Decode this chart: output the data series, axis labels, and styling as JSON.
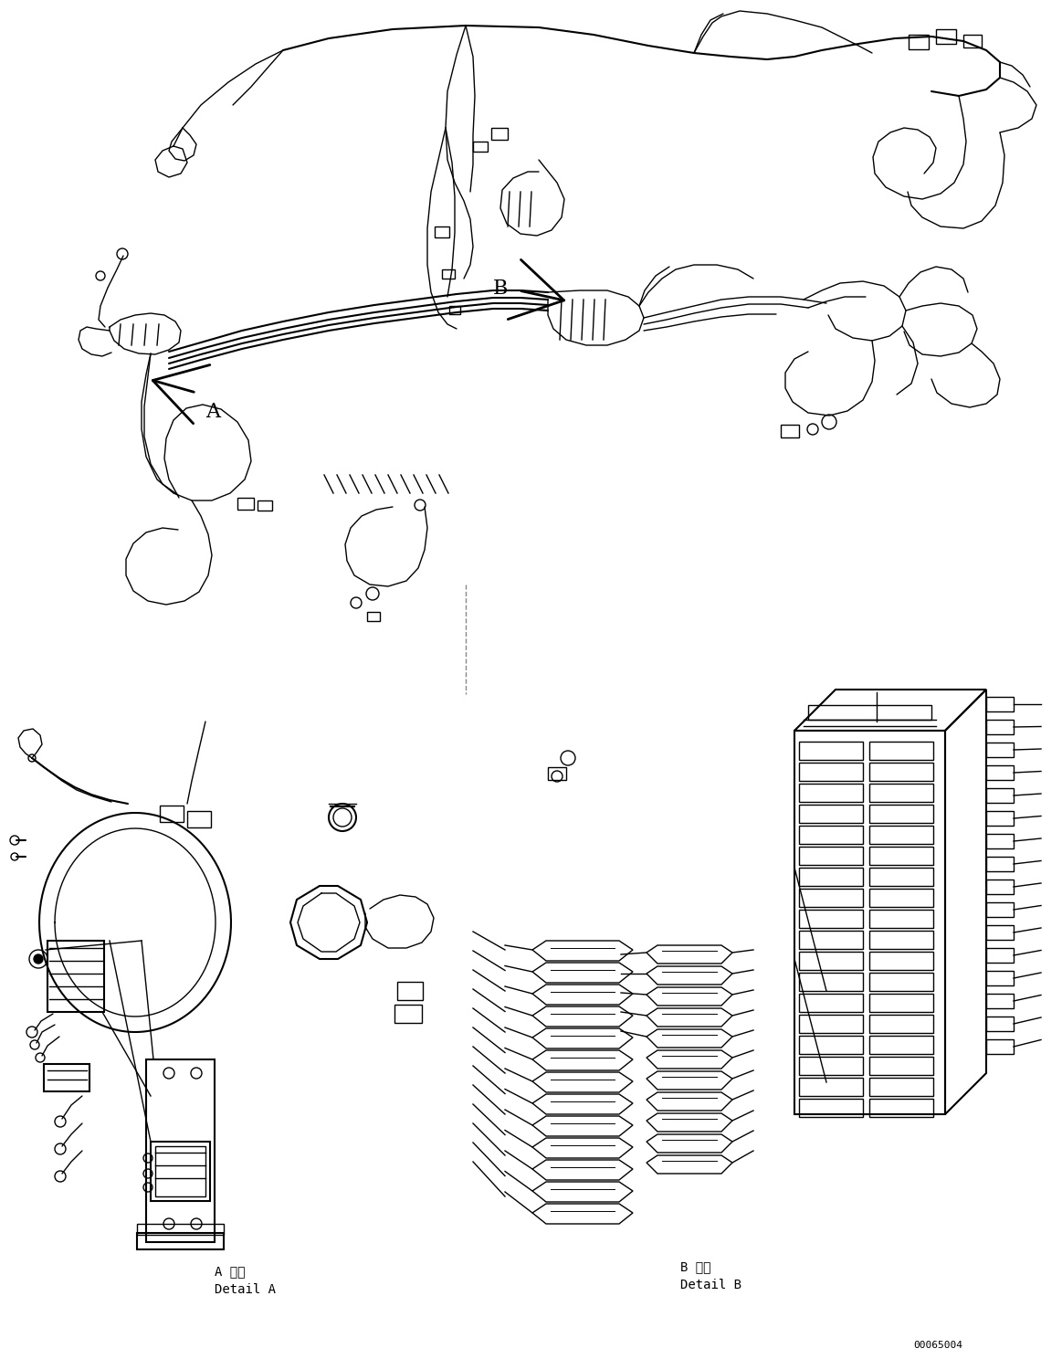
{
  "background_color": "#ffffff",
  "line_color": "#000000",
  "fig_width": 11.63,
  "fig_height": 14.88,
  "label_A": "A",
  "label_B": "B",
  "detail_A_label_jp": "A 詳細",
  "detail_A_label_en": "Detail A",
  "detail_B_label_jp": "B 詳細",
  "detail_B_label_en": "Detail B",
  "part_number": "00065004",
  "font_size_labels": 16,
  "font_size_detail": 10,
  "font_size_part": 8
}
